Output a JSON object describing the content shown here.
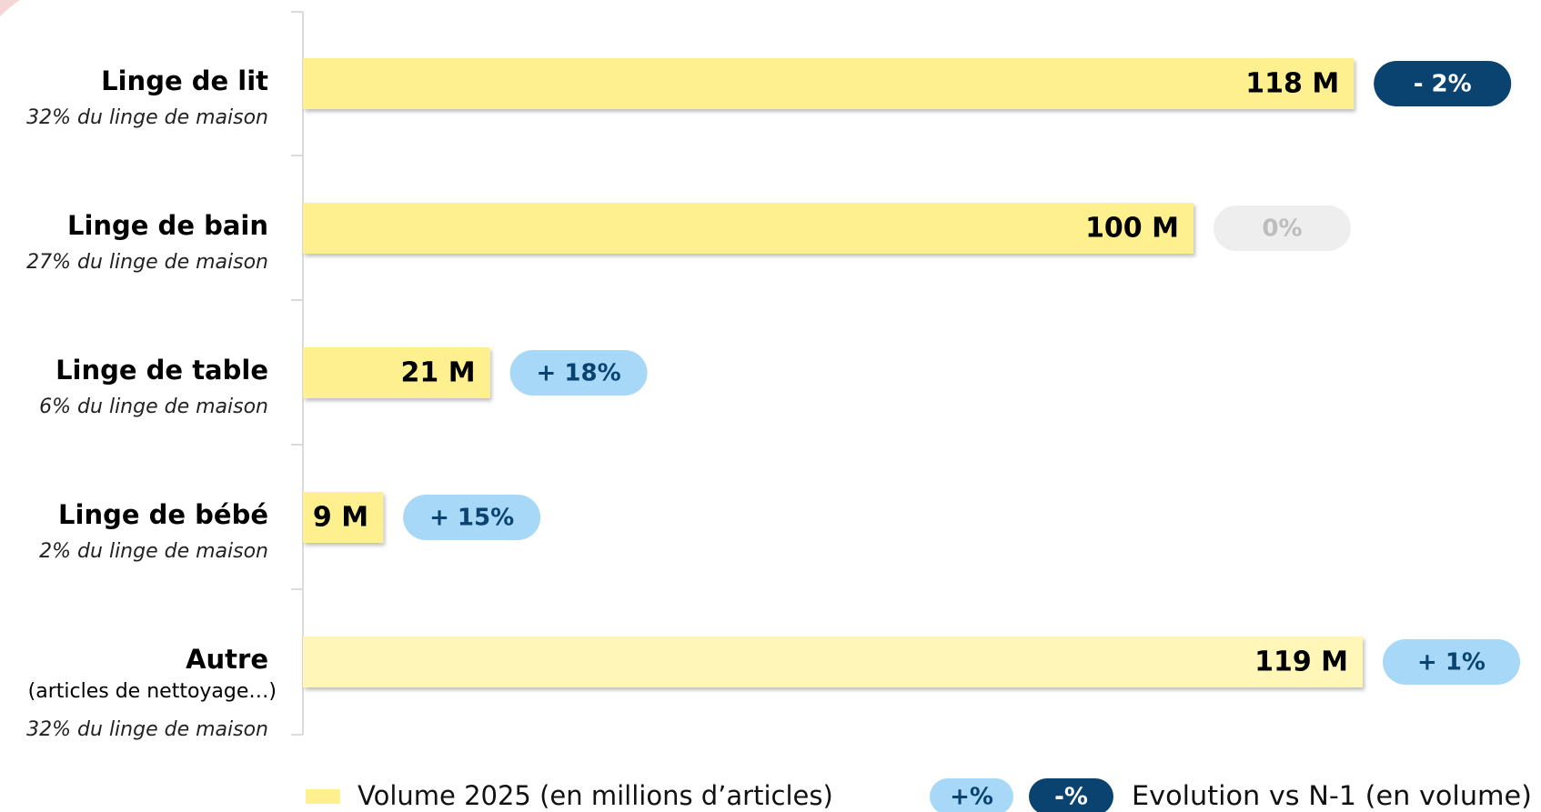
{
  "chart_data": {
    "type": "bar",
    "categories": [
      "Linge de lit",
      "Linge de bain",
      "Linge de table",
      "Linge de bébé",
      "Autre"
    ],
    "category_notes": [
      null,
      null,
      null,
      null,
      "(articles de nettoyage…)"
    ],
    "subtitles": [
      "32% du linge de maison",
      "27% du linge de maison",
      "6% du linge de maison",
      "2% du linge de maison",
      "32% du linge de maison"
    ],
    "values": [
      118,
      100,
      21,
      9,
      119
    ],
    "value_labels": [
      "118 M",
      "100 M",
      "21 M",
      "9 M",
      "119 M"
    ],
    "colors": [
      "#fff08f",
      "#fff08f",
      "#fff08f",
      "#fff08f",
      "#fff6b8"
    ],
    "evolution": {
      "values": [
        -2,
        0,
        18,
        15,
        1
      ],
      "value_labels": [
        "- 2%",
        "0%",
        "+ 18%",
        "+ 15%",
        "+ 1%"
      ],
      "positive_color": "#a8d8f7",
      "negative_color": "#0b4370",
      "zero_color": "#eeeeee"
    },
    "legend": {
      "volume": "Volume 2025 (en millions d’articles)",
      "plus": "+%",
      "minus": "-%",
      "evolution": "Evolution vs N-1 (en volume)"
    }
  }
}
